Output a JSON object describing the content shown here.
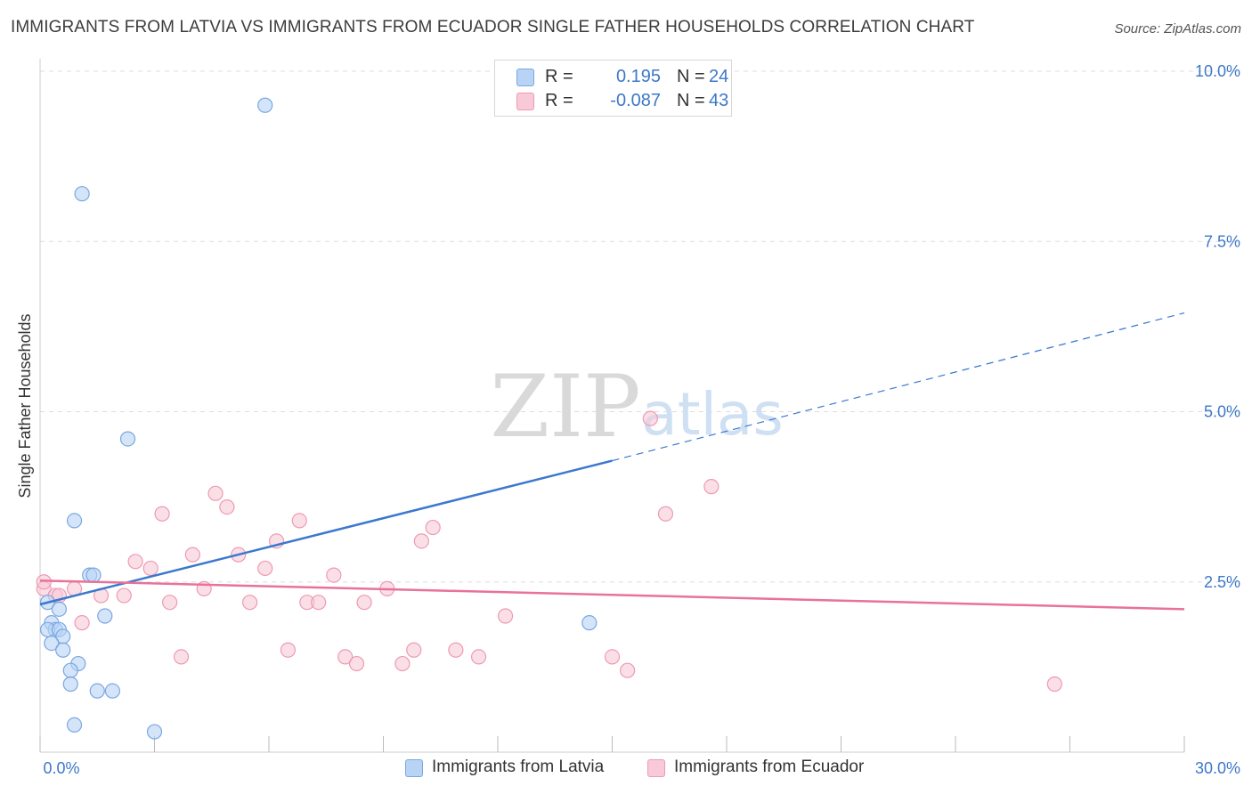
{
  "title": "IMMIGRANTS FROM LATVIA VS IMMIGRANTS FROM ECUADOR SINGLE FATHER HOUSEHOLDS CORRELATION CHART",
  "source": "Source: ZipAtlas.com",
  "watermark": {
    "zip": "ZIP",
    "atlas": "atlas"
  },
  "legend": {
    "latvia": {
      "r_label": "R =",
      "r_value": "0.195",
      "n_label": "N =",
      "n_value": "24"
    },
    "ecuador": {
      "r_label": "R =",
      "r_value": "-0.087",
      "n_label": "N =",
      "n_value": "43"
    }
  },
  "bottom_legend": {
    "latvia": "Immigrants from Latvia",
    "ecuador": "Immigrants from Ecuador"
  },
  "colors": {
    "latvia_fill": "#b9d3f5",
    "latvia_stroke": "#7aa7e0",
    "latvia_line": "#3a78cf",
    "ecuador_fill": "#f8c9d7",
    "ecuador_stroke": "#ee9ab4",
    "ecuador_line": "#e8729a",
    "tick_label": "#3d78c8",
    "grid": "#dddddd"
  },
  "chart_data": {
    "type": "scatter",
    "title": "IMMIGRANTS FROM LATVIA VS IMMIGRANTS FROM ECUADOR SINGLE FATHER HOUSEHOLDS CORRELATION CHART",
    "xlabel": "",
    "ylabel": "Single Father Households",
    "xlim": [
      0,
      30
    ],
    "ylim": [
      0,
      10
    ],
    "x_tick_labels": [
      "0.0%",
      "30.0%"
    ],
    "y_ticks": [
      2.5,
      5.0,
      7.5,
      10.0
    ],
    "y_tick_labels": [
      "2.5%",
      "5.0%",
      "7.5%",
      "10.0%"
    ],
    "grid": true,
    "legend_position": "top-center",
    "series": [
      {
        "name": "Immigrants from Latvia",
        "points": [
          [
            5.9,
            9.5
          ],
          [
            1.1,
            8.2
          ],
          [
            2.3,
            4.6
          ],
          [
            0.9,
            3.4
          ],
          [
            1.3,
            2.6
          ],
          [
            1.4,
            2.6
          ],
          [
            0.2,
            2.2
          ],
          [
            0.5,
            2.1
          ],
          [
            1.7,
            2.0
          ],
          [
            0.3,
            1.9
          ],
          [
            0.4,
            1.8
          ],
          [
            0.2,
            1.8
          ],
          [
            0.5,
            1.8
          ],
          [
            0.6,
            1.7
          ],
          [
            0.3,
            1.6
          ],
          [
            0.6,
            1.5
          ],
          [
            1.0,
            1.3
          ],
          [
            0.8,
            1.2
          ],
          [
            0.8,
            1.0
          ],
          [
            1.5,
            0.9
          ],
          [
            1.9,
            0.9
          ],
          [
            0.9,
            0.4
          ],
          [
            3.0,
            0.3
          ],
          [
            14.4,
            1.9
          ]
        ],
        "trend": {
          "x": [
            0,
            15
          ],
          "y": [
            2.17,
            4.28
          ],
          "dashed_extension": {
            "x": [
              15,
              30
            ],
            "y": [
              4.28,
              6.45
            ]
          }
        }
      },
      {
        "name": "Immigrants from Ecuador",
        "points": [
          [
            0.1,
            2.4
          ],
          [
            0.4,
            2.3
          ],
          [
            0.5,
            2.3
          ],
          [
            0.9,
            2.4
          ],
          [
            1.1,
            1.9
          ],
          [
            1.6,
            2.3
          ],
          [
            2.2,
            2.3
          ],
          [
            2.5,
            2.8
          ],
          [
            2.9,
            2.7
          ],
          [
            3.2,
            3.5
          ],
          [
            3.4,
            2.2
          ],
          [
            3.7,
            1.4
          ],
          [
            4.0,
            2.9
          ],
          [
            4.3,
            2.4
          ],
          [
            4.6,
            3.8
          ],
          [
            4.9,
            3.6
          ],
          [
            5.2,
            2.9
          ],
          [
            5.5,
            2.2
          ],
          [
            5.9,
            2.7
          ],
          [
            6.2,
            3.1
          ],
          [
            6.5,
            1.5
          ],
          [
            6.8,
            3.4
          ],
          [
            7.0,
            2.2
          ],
          [
            7.3,
            2.2
          ],
          [
            7.7,
            2.6
          ],
          [
            8.0,
            1.4
          ],
          [
            8.3,
            1.3
          ],
          [
            8.5,
            2.2
          ],
          [
            9.1,
            2.4
          ],
          [
            9.5,
            1.3
          ],
          [
            9.8,
            1.5
          ],
          [
            10.0,
            3.1
          ],
          [
            10.3,
            3.3
          ],
          [
            10.9,
            1.5
          ],
          [
            11.5,
            1.4
          ],
          [
            12.2,
            2.0
          ],
          [
            15.0,
            1.4
          ],
          [
            15.4,
            1.2
          ],
          [
            16.0,
            4.9
          ],
          [
            16.4,
            3.5
          ],
          [
            17.6,
            3.9
          ],
          [
            26.6,
            1.0
          ],
          [
            0.1,
            2.5
          ]
        ],
        "trend": {
          "x": [
            0,
            30
          ],
          "y": [
            2.52,
            2.1
          ]
        }
      }
    ]
  }
}
